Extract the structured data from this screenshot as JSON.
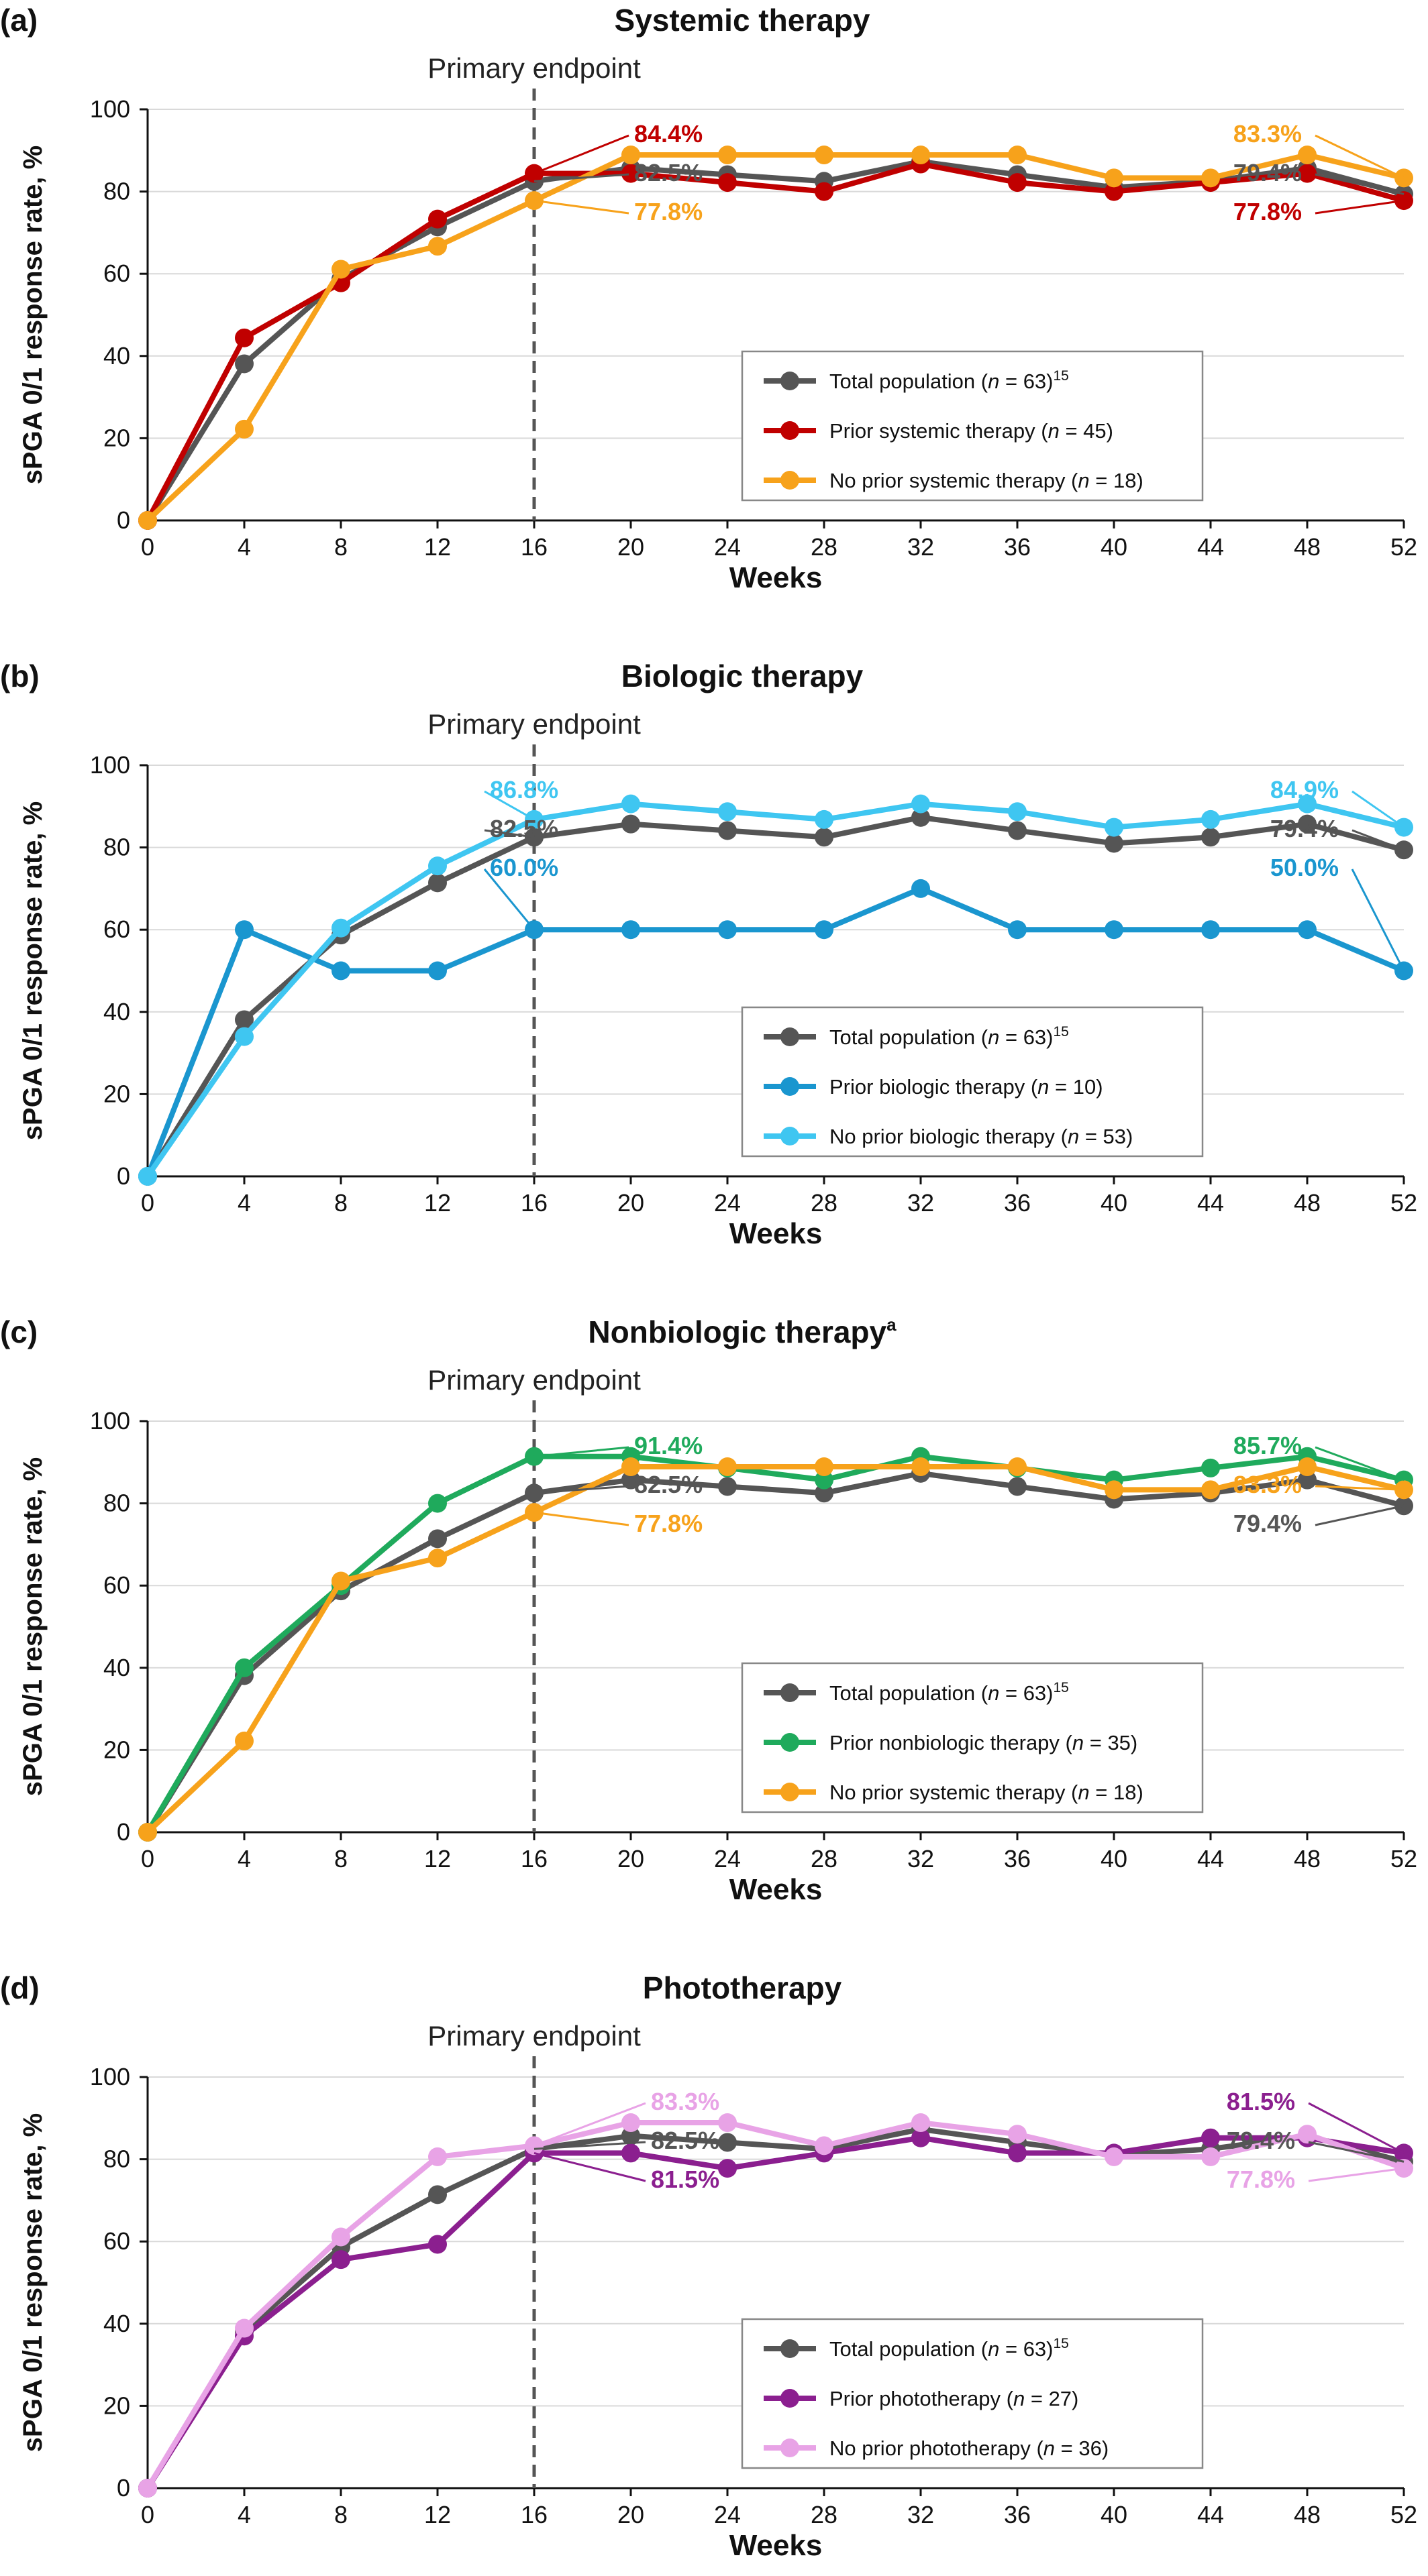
{
  "chart_data": [
    {
      "type": "line",
      "panel": "(a)",
      "title": "Systemic therapy",
      "xlabel": "Weeks",
      "ylabel": "sPGA 0/1 response rate, %",
      "ylim": [
        0,
        100
      ],
      "x": [
        0,
        4,
        8,
        12,
        16,
        20,
        24,
        28,
        32,
        36,
        40,
        44,
        48,
        52
      ],
      "reference_line": {
        "x": 16,
        "label": "Primary endpoint"
      },
      "legend": [
        {
          "parts": [
            "Total population (",
            "n",
            " = 63)",
            "15"
          ],
          "color": "#555555"
        },
        {
          "parts": [
            "Prior systemic therapy (",
            "n",
            " = 45)"
          ],
          "color": "#c00000"
        },
        {
          "parts": [
            "No prior systemic therapy (",
            "n",
            " = 18)"
          ],
          "color": "#f7a21b"
        }
      ],
      "series": [
        {
          "color": "#555555",
          "values": [
            0,
            38.1,
            58.7,
            71.4,
            82.5,
            85.7,
            84.1,
            82.5,
            87.3,
            84.1,
            81.0,
            82.5,
            85.7,
            79.4
          ]
        },
        {
          "color": "#c00000",
          "values": [
            0,
            44.4,
            57.8,
            73.3,
            84.4,
            84.4,
            82.2,
            80.0,
            86.7,
            82.2,
            80.0,
            82.2,
            84.4,
            77.8
          ]
        },
        {
          "color": "#f7a21b",
          "values": [
            0,
            22.2,
            61.1,
            66.7,
            77.8,
            88.9,
            88.9,
            88.9,
            88.9,
            88.9,
            83.3,
            83.3,
            88.9,
            83.3
          ]
        }
      ],
      "annotations": [
        {
          "text": "84.4%",
          "color": "#c00000"
        },
        {
          "text": "82.5%",
          "color": "#555555"
        },
        {
          "text": "77.8%",
          "color": "#f7a21b"
        },
        {
          "text": "83.3%",
          "color": "#f7a21b"
        },
        {
          "text": "79.4%",
          "color": "#555555"
        },
        {
          "text": "77.8%",
          "color": "#c00000"
        }
      ]
    },
    {
      "type": "line",
      "panel": "(b)",
      "title": "Biologic therapy",
      "xlabel": "Weeks",
      "ylabel": "sPGA 0/1 response rate, %",
      "ylim": [
        0,
        100
      ],
      "x": [
        0,
        4,
        8,
        12,
        16,
        20,
        24,
        28,
        32,
        36,
        40,
        44,
        48,
        52
      ],
      "reference_line": {
        "x": 16,
        "label": "Primary endpoint"
      },
      "legend": [
        {
          "parts": [
            "Total population (",
            "n",
            " = 63)",
            "15"
          ],
          "color": "#555555"
        },
        {
          "parts": [
            "Prior biologic therapy (",
            "n",
            " = 10)"
          ],
          "color": "#1a96cf"
        },
        {
          "parts": [
            "No prior biologic therapy (",
            "n",
            " = 53)"
          ],
          "color": "#3fc6f1"
        }
      ],
      "series": [
        {
          "color": "#555555",
          "values": [
            0,
            38.1,
            58.7,
            71.4,
            82.5,
            85.7,
            84.1,
            82.5,
            87.3,
            84.1,
            81.0,
            82.5,
            85.7,
            79.4
          ]
        },
        {
          "color": "#1a96cf",
          "values": [
            0,
            60.0,
            50.0,
            50.0,
            60.0,
            60.0,
            60.0,
            60.0,
            70.0,
            60.0,
            60.0,
            60.0,
            60.0,
            50.0
          ]
        },
        {
          "color": "#3fc6f1",
          "values": [
            0,
            34.0,
            60.4,
            75.5,
            86.8,
            90.6,
            88.7,
            86.8,
            90.6,
            88.7,
            84.9,
            86.8,
            90.6,
            84.9
          ]
        }
      ],
      "annotations": [
        {
          "text": "86.8%",
          "color": "#3fc6f1"
        },
        {
          "text": "82.5%",
          "color": "#555555"
        },
        {
          "text": "60.0%",
          "color": "#1a96cf"
        },
        {
          "text": "84.9%",
          "color": "#3fc6f1"
        },
        {
          "text": "79.4%",
          "color": "#555555"
        },
        {
          "text": "50.0%",
          "color": "#1a96cf"
        }
      ]
    },
    {
      "type": "line",
      "panel": "(c)",
      "title": "Nonbiologic therapy",
      "title_sup": "a",
      "xlabel": "Weeks",
      "ylabel": "sPGA 0/1 response rate, %",
      "ylim": [
        0,
        100
      ],
      "x": [
        0,
        4,
        8,
        12,
        16,
        20,
        24,
        28,
        32,
        36,
        40,
        44,
        48,
        52
      ],
      "reference_line": {
        "x": 16,
        "label": "Primary endpoint"
      },
      "legend": [
        {
          "parts": [
            "Total population (",
            "n",
            " = 63)",
            "15"
          ],
          "color": "#555555"
        },
        {
          "parts": [
            "Prior nonbiologic therapy (",
            "n",
            " = 35)"
          ],
          "color": "#1faa5c"
        },
        {
          "parts": [
            "No prior systemic therapy (",
            "n",
            " = 18)"
          ],
          "color": "#f7a21b"
        }
      ],
      "series": [
        {
          "color": "#555555",
          "values": [
            0,
            38.1,
            58.7,
            71.4,
            82.5,
            85.7,
            84.1,
            82.5,
            87.3,
            84.1,
            81.0,
            82.5,
            85.7,
            79.4
          ]
        },
        {
          "color": "#1faa5c",
          "values": [
            0,
            40.0,
            60.0,
            80.0,
            91.4,
            91.4,
            88.6,
            85.7,
            91.4,
            88.6,
            85.7,
            88.6,
            91.4,
            85.7
          ]
        },
        {
          "color": "#f7a21b",
          "values": [
            0,
            22.2,
            61.1,
            66.7,
            77.8,
            88.9,
            88.9,
            88.9,
            88.9,
            88.9,
            83.3,
            83.3,
            88.9,
            83.3
          ]
        }
      ],
      "annotations": [
        {
          "text": "91.4%",
          "color": "#1faa5c"
        },
        {
          "text": "82.5%",
          "color": "#555555"
        },
        {
          "text": "77.8%",
          "color": "#f7a21b"
        },
        {
          "text": "85.7%",
          "color": "#1faa5c"
        },
        {
          "text": "83.3%",
          "color": "#f7a21b"
        },
        {
          "text": "79.4%",
          "color": "#555555"
        }
      ]
    },
    {
      "type": "line",
      "panel": "(d)",
      "title": "Phototherapy",
      "xlabel": "Weeks",
      "ylabel": "sPGA 0/1 response rate, %",
      "ylim": [
        0,
        100
      ],
      "x": [
        0,
        4,
        8,
        12,
        16,
        20,
        24,
        28,
        32,
        36,
        40,
        44,
        48,
        52
      ],
      "reference_line": {
        "x": 16,
        "label": "Primary endpoint"
      },
      "legend": [
        {
          "parts": [
            "Total population (",
            "n",
            " = 63)",
            "15"
          ],
          "color": "#555555"
        },
        {
          "parts": [
            "Prior phototherapy (",
            "n",
            " = 27)"
          ],
          "color": "#8b1f8f"
        },
        {
          "parts": [
            "No prior phototherapy (",
            "n",
            " = 36)"
          ],
          "color": "#e8a3e6"
        }
      ],
      "series": [
        {
          "color": "#555555",
          "values": [
            0,
            38.1,
            58.7,
            71.4,
            82.5,
            85.7,
            84.1,
            82.5,
            87.3,
            84.1,
            81.0,
            82.5,
            85.7,
            79.4
          ]
        },
        {
          "color": "#8b1f8f",
          "values": [
            0,
            37.0,
            55.6,
            59.3,
            81.5,
            81.5,
            77.8,
            81.5,
            85.2,
            81.5,
            81.5,
            85.2,
            85.2,
            81.5
          ]
        },
        {
          "color": "#e8a3e6",
          "values": [
            0,
            38.9,
            61.1,
            80.6,
            83.3,
            88.9,
            88.9,
            83.3,
            88.9,
            86.1,
            80.6,
            80.6,
            86.1,
            77.8
          ]
        }
      ],
      "annotations": [
        {
          "text": "83.3%",
          "color": "#e8a3e6"
        },
        {
          "text": "82.5%",
          "color": "#555555"
        },
        {
          "text": "81.5%",
          "color": "#8b1f8f"
        },
        {
          "text": "81.5%",
          "color": "#8b1f8f"
        },
        {
          "text": "79.4%",
          "color": "#555555"
        },
        {
          "text": "77.8%",
          "color": "#e8a3e6"
        }
      ]
    }
  ]
}
